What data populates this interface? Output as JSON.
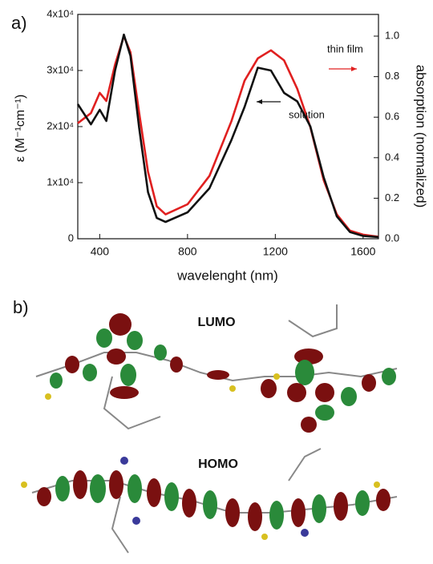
{
  "chart_data": {
    "type": "line",
    "xlabel": "wavelenght (nm)",
    "ylabel": "ε (M⁻¹cm⁻¹)",
    "y2label": "absorption (normalized)",
    "annotations": [
      "a)",
      "b)",
      "LUMO",
      "HOMO"
    ],
    "x": [
      300,
      360,
      400,
      430,
      470,
      510,
      540,
      580,
      620,
      660,
      700,
      800,
      900,
      1000,
      1060,
      1120,
      1180,
      1240,
      1300,
      1360,
      1420,
      1480,
      1540,
      1600,
      1670
    ],
    "series": [
      {
        "name": "thin film",
        "color": "#e02020",
        "axis": "y2",
        "values": [
          0.57,
          0.62,
          0.72,
          0.68,
          0.86,
          1.0,
          0.92,
          0.62,
          0.33,
          0.16,
          0.12,
          0.17,
          0.31,
          0.58,
          0.78,
          0.89,
          0.93,
          0.88,
          0.74,
          0.55,
          0.29,
          0.12,
          0.04,
          0.02,
          0.01
        ]
      },
      {
        "name": "solution",
        "color": "#111111",
        "axis": "y",
        "values": [
          24000,
          20400,
          23000,
          21000,
          30000,
          36400,
          32600,
          19700,
          8300,
          3700,
          3000,
          4700,
          9000,
          17600,
          23500,
          30500,
          30000,
          26000,
          24500,
          20000,
          11000,
          4000,
          1200,
          500,
          300
        ]
      }
    ],
    "xlim": [
      300,
      1670
    ],
    "xticks": [
      400,
      800,
      1200,
      1600
    ],
    "ylim": [
      0,
      40000
    ],
    "yticks": [
      0,
      {
        "value": 10000,
        "label": "1x10⁴"
      },
      {
        "value": 20000,
        "label": "2x10⁴"
      },
      {
        "value": 30000,
        "label": "3x10⁴"
      },
      {
        "value": 40000,
        "label": "4x10⁴"
      }
    ],
    "y2lim": [
      0,
      1.107
    ],
    "y2ticks": [
      {
        "value": 0,
        "label": "0.0"
      },
      {
        "value": 0.2,
        "label": "0.2"
      },
      {
        "value": 0.4,
        "label": "0.4"
      },
      {
        "value": 0.6,
        "label": "0.6"
      },
      {
        "value": 0.8,
        "label": "0.8"
      },
      {
        "value": 1.0,
        "label": "1.0"
      }
    ]
  }
}
